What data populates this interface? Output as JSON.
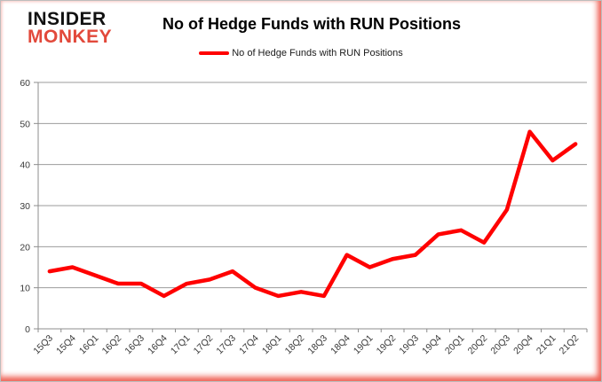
{
  "header": {
    "logo_line1": "INSIDER",
    "logo_line2": "MONKEY",
    "title": "No of Hedge Funds with RUN Positions"
  },
  "legend": {
    "label": "No of Hedge Funds with RUN Positions"
  },
  "colors": {
    "series_red": "#ff0000",
    "logo_red": "#e2493b",
    "grid": "#9b9b9b",
    "axis": "#8c8c8c",
    "tick_label": "#3a3a3a",
    "frame_glow_red": "#eb3728",
    "background": "#ffffff"
  },
  "chart_data": {
    "type": "line",
    "title": "No of Hedge Funds with RUN Positions",
    "categories": [
      "15Q3",
      "15Q4",
      "16Q1",
      "16Q2",
      "16Q3",
      "16Q4",
      "17Q1",
      "17Q2",
      "17Q3",
      "17Q4",
      "18Q1",
      "18Q2",
      "18Q3",
      "18Q4",
      "19Q1",
      "19Q2",
      "19Q3",
      "19Q4",
      "20Q1",
      "20Q2",
      "20Q3",
      "20Q4",
      "21Q1",
      "21Q2"
    ],
    "series": [
      {
        "name": "No of Hedge Funds with RUN Positions",
        "color": "#ff0000",
        "values": [
          14,
          15,
          13,
          11,
          11,
          8,
          11,
          12,
          14,
          10,
          8,
          9,
          8,
          18,
          15,
          17,
          18,
          23,
          24,
          21,
          29,
          48,
          41,
          45
        ]
      }
    ],
    "xlabel": "",
    "ylabel": "",
    "ylim": [
      0,
      60
    ],
    "yticks": [
      0,
      10,
      20,
      30,
      40,
      50,
      60
    ],
    "grid": "horizontal",
    "legend_position": "top"
  }
}
